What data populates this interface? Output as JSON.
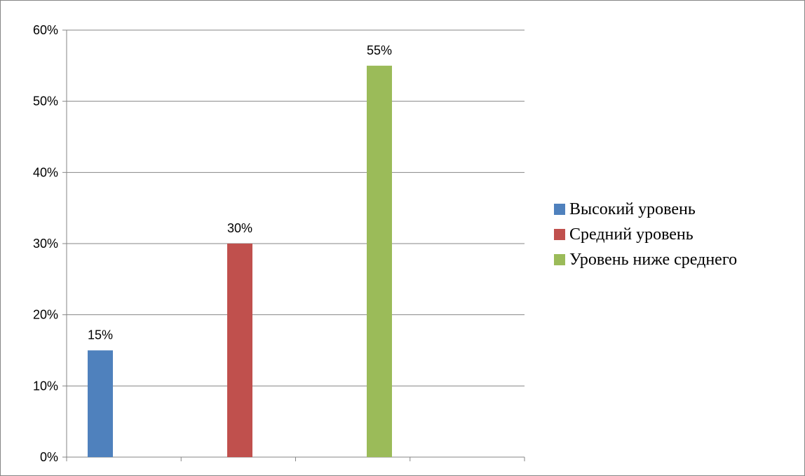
{
  "chart_data": {
    "type": "bar",
    "title": "",
    "xlabel": "",
    "ylabel": "",
    "ylim": [
      0,
      60
    ],
    "yticks": [
      "0%",
      "10%",
      "20%",
      "30%",
      "40%",
      "50%",
      "60%"
    ],
    "grid": true,
    "legend_position": "right",
    "series": [
      {
        "name": "Высокий уровень",
        "value": 15,
        "label": "15%",
        "color": "#4f81bd"
      },
      {
        "name": "Средний уровень",
        "value": 30,
        "label": "30%",
        "color": "#c0504d"
      },
      {
        "name": "Уровень ниже среднего",
        "value": 55,
        "label": "55%",
        "color": "#9bbb59"
      }
    ]
  }
}
